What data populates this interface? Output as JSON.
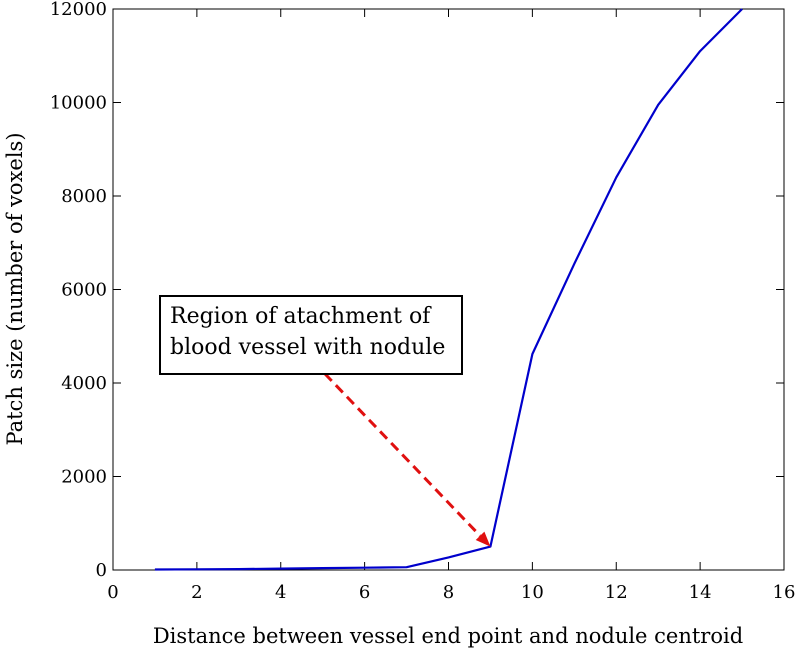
{
  "chart_data": {
    "type": "line",
    "title": "",
    "xlabel": "Distance between vessel end point and nodule centroid",
    "ylabel": "Patch size (number of voxels)",
    "xlim": [
      0,
      16
    ],
    "ylim": [
      0,
      12000
    ],
    "x_ticks": [
      0,
      2,
      4,
      6,
      8,
      10,
      12,
      14,
      16
    ],
    "y_ticks": [
      0,
      2000,
      4000,
      6000,
      8000,
      10000,
      12000
    ],
    "x_tick_labels": [
      "0",
      "2",
      "4",
      "6",
      "8",
      "10",
      "12",
      "14",
      "16"
    ],
    "y_tick_labels": [
      "0",
      "2000",
      "4000",
      "6000",
      "8000",
      "10000",
      "12000"
    ],
    "grid": false,
    "series": [
      {
        "color": "#0000cc",
        "x": [
          1,
          2,
          3,
          4,
          5,
          6,
          7,
          8,
          9,
          10,
          11,
          12,
          13,
          14,
          15
        ],
        "y": [
          10,
          15,
          20,
          30,
          40,
          50,
          60,
          270,
          500,
          4620,
          6550,
          8400,
          9950,
          11100,
          12000
        ]
      }
    ],
    "annotation": {
      "lines": [
        "Region of atachment of",
        "blood vessel with nodule"
      ],
      "arrow_color": "#e01010",
      "arrow_target": [
        9,
        500
      ],
      "arrow_origin": [
        5.05,
        4200
      ]
    }
  }
}
